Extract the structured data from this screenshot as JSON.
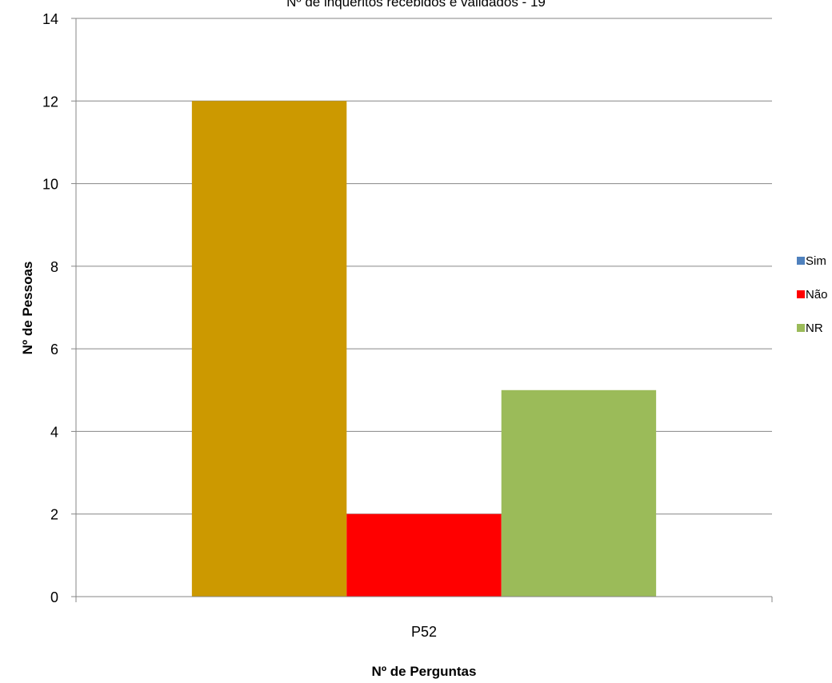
{
  "chart_data": {
    "type": "bar",
    "title": "Nº de inquéritos recebidos e validados - 19",
    "xlabel": "Nº de Perguntas",
    "ylabel": "Nº de Pessoas",
    "categories": [
      "P52"
    ],
    "series": [
      {
        "name": "Sim",
        "values": [
          12
        ],
        "color": "#CC9900",
        "legend_color": "#4F81BD"
      },
      {
        "name": "Não",
        "values": [
          2
        ],
        "color": "#FF0000",
        "legend_color": "#FF0000"
      },
      {
        "name": "NR",
        "values": [
          5
        ],
        "color": "#9BBB59",
        "legend_color": "#9BBB59"
      }
    ],
    "ylim": [
      0,
      14
    ],
    "yticks": [
      0,
      2,
      4,
      6,
      8,
      10,
      12,
      14
    ],
    "grid": true,
    "legend_position": "right"
  }
}
